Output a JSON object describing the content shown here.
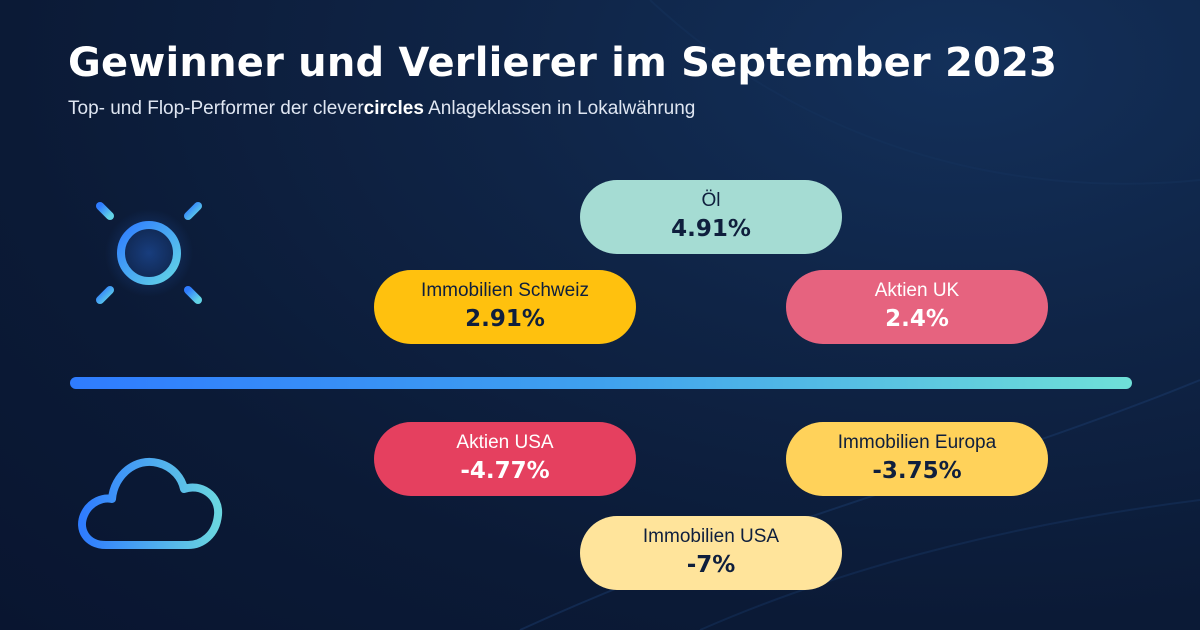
{
  "header": {
    "title": "Gewinner und Verlierer im September 2023",
    "subtitle_before": "Top- und Flop-Performer der clever",
    "subtitle_brand": "circles",
    "subtitle_after": " Anlageklassen in Lokalwährung"
  },
  "icons": {
    "winners": "sun-icon",
    "losers": "cloud-icon"
  },
  "colors": {
    "teal": "#a5dcd3",
    "yellow": "#ffc10e",
    "pink": "#e6637f",
    "red": "#e5405f",
    "light_yellow": "#ffd25a",
    "pale_yellow": "#ffe49b",
    "dark_text": "#0f1f3d"
  },
  "winners": [
    {
      "label": "Öl",
      "value": "4.91%"
    },
    {
      "label": "Immobilien Schweiz",
      "value": "2.91%"
    },
    {
      "label": "Aktien UK",
      "value": "2.4%"
    }
  ],
  "losers": [
    {
      "label": "Aktien USA",
      "value": "-4.77%"
    },
    {
      "label": "Immobilien Europa",
      "value": "-3.75%"
    },
    {
      "label": "Immobilien USA",
      "value": "-7%"
    }
  ]
}
